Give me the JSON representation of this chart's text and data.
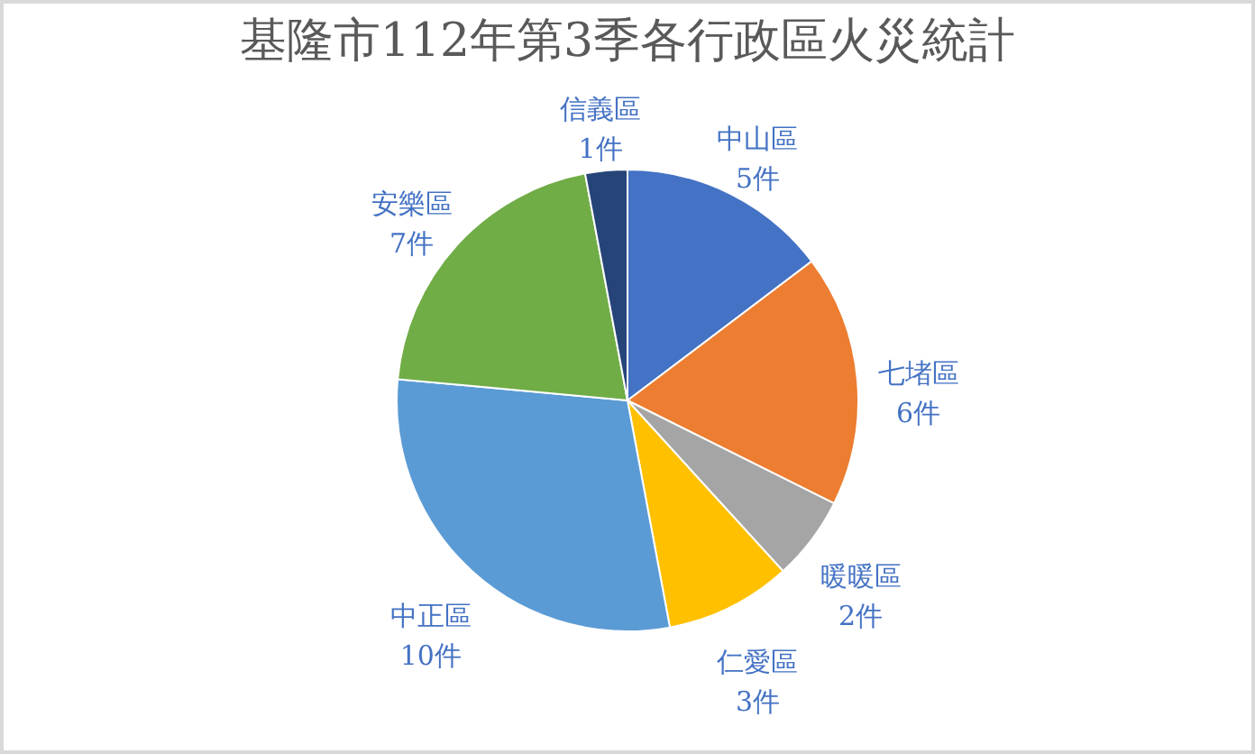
{
  "chart_data": {
    "type": "pie",
    "title": "基隆市112年第3季各行政區火災統計",
    "categories": [
      "中山區",
      "七堵區",
      "暖暖區",
      "仁愛區",
      "中正區",
      "安樂區",
      "信義區"
    ],
    "values": [
      5,
      6,
      2,
      3,
      10,
      7,
      1
    ],
    "value_labels": [
      "5件",
      "6件",
      "2件",
      "3件",
      "10件",
      "7件",
      "1件"
    ],
    "colors": [
      "#4472c4",
      "#ed7d31",
      "#a5a5a5",
      "#ffc000",
      "#5b9bd5",
      "#70ad47",
      "#264478"
    ]
  }
}
